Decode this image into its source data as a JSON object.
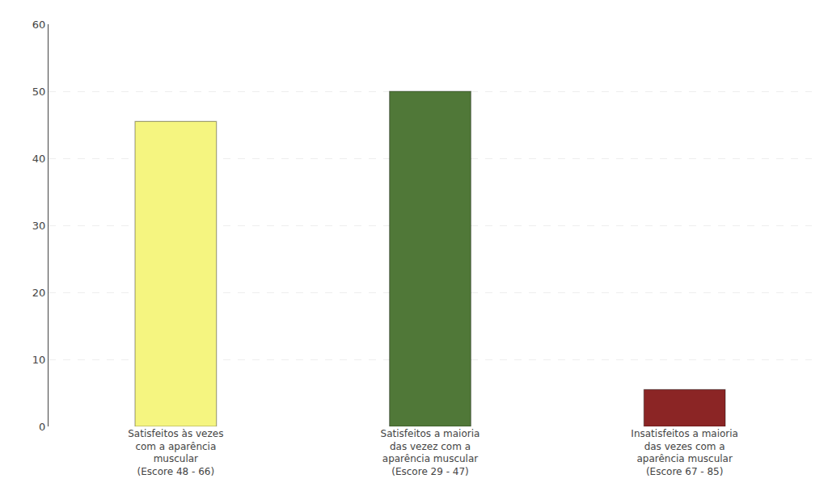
{
  "chart_data": {
    "type": "bar",
    "categories": [
      "Satisfeitos às vezes\ncom a aparência\nmuscular\n(Escore 48 - 66)",
      "Satisfeitos a maioria\ndas vezez com a\naparência muscular\n(Escore 29 - 47)",
      "Insatisfeitos a maioria\ndas vezes com a\naparência muscular\n(Escore 67 - 85)"
    ],
    "values": [
      45.5,
      50,
      5.5
    ],
    "colors": [
      "#f5f580",
      "#507838",
      "#8b2525"
    ],
    "ylim": [
      0,
      60
    ],
    "yticks": [
      0,
      10,
      20,
      30,
      40,
      50,
      60
    ],
    "grid": true
  }
}
